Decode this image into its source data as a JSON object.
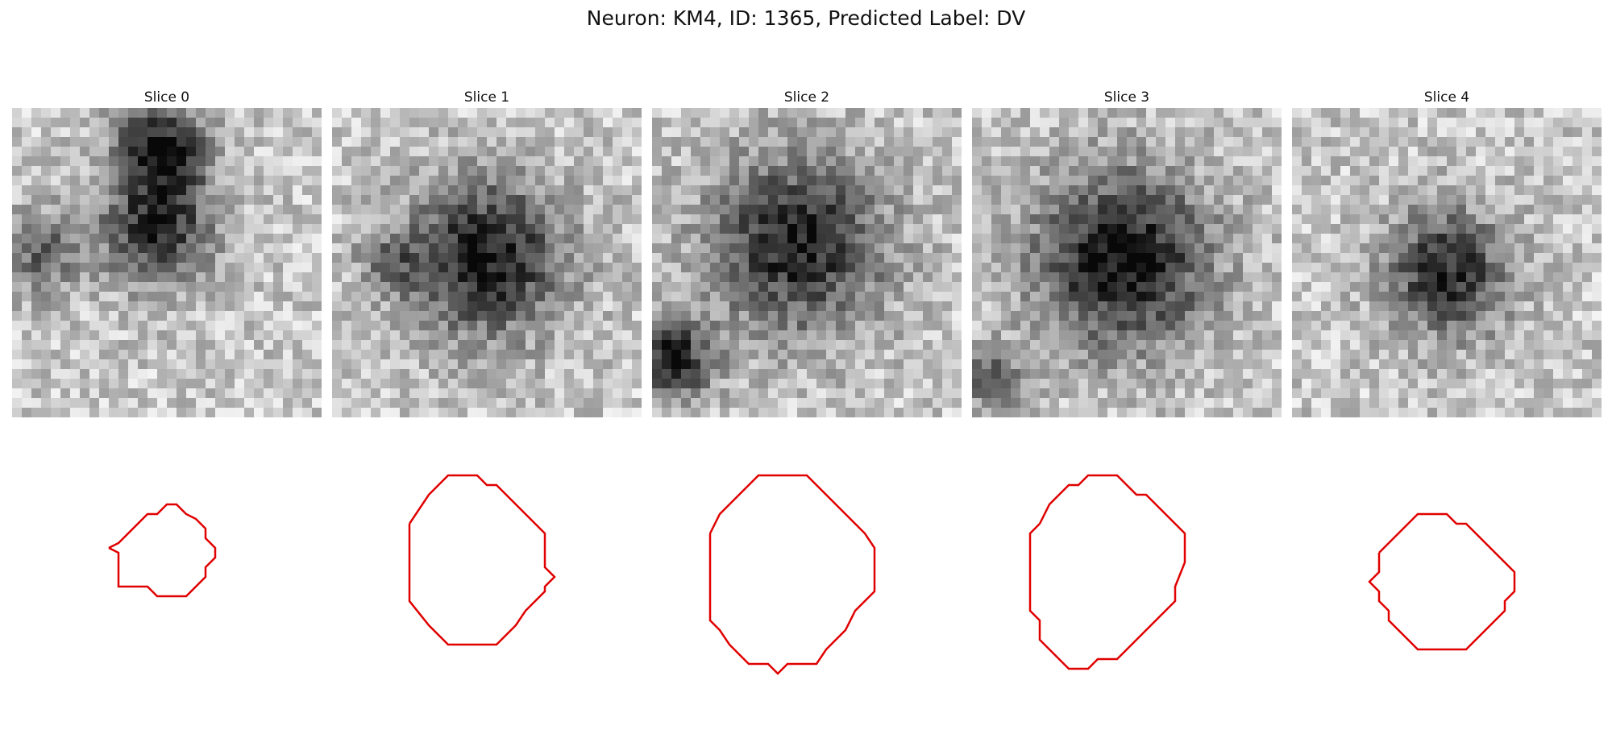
{
  "figure": {
    "title": "Neuron: KM4, ID: 1365, Predicted Label: DV"
  },
  "panels": [
    {
      "title": "Slice 0",
      "contour_color": "#e00000"
    },
    {
      "title": "Slice 1",
      "contour_color": "#e00000"
    },
    {
      "title": "Slice 2",
      "contour_color": "#e00000"
    },
    {
      "title": "Slice 3",
      "contour_color": "#e00000"
    },
    {
      "title": "Slice 4",
      "contour_color": "#e00000"
    }
  ]
}
